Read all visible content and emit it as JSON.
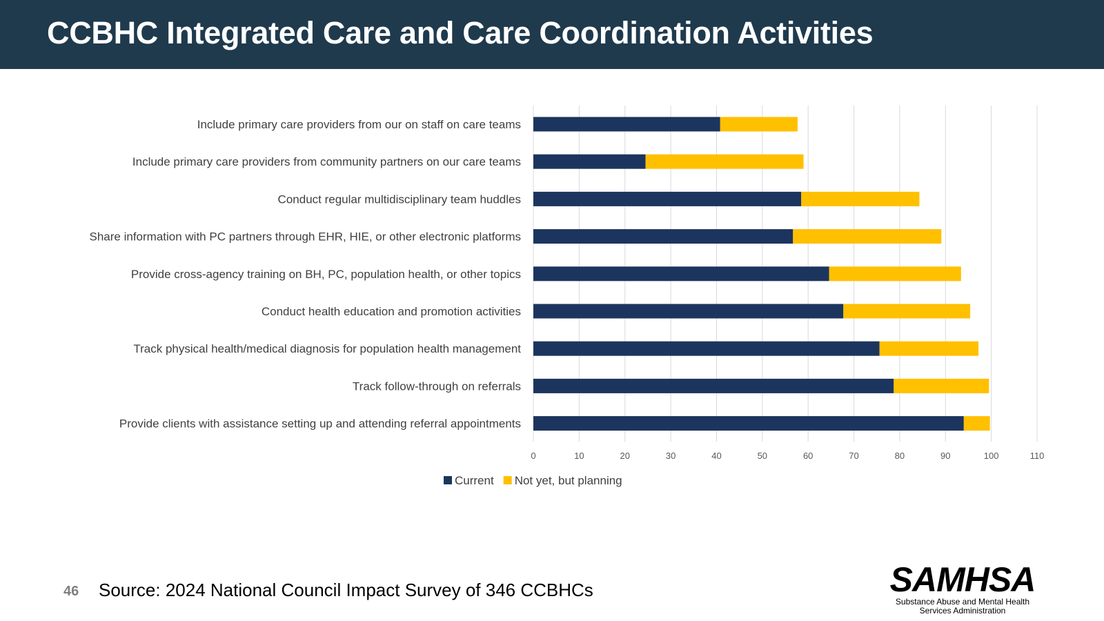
{
  "title": "CCBHC Integrated Care and Care Coordination Activities",
  "page_number": "46",
  "source": "Source:  2024 National Council Impact Survey of 346 CCBHCs",
  "logo": {
    "name": "SAMHSA",
    "subtitle_line1": "Substance Abuse and Mental Health",
    "subtitle_line2": "Services Administration"
  },
  "colors": {
    "header": "#1f3a4d",
    "current": "#1c355e",
    "planning": "#ffc000",
    "grid": "#d9d9d9"
  },
  "chart_data": {
    "type": "bar",
    "orientation": "horizontal",
    "stacked": true,
    "categories": [
      "Include primary care providers from our on staff on care teams",
      "Include primary care providers from community partners on our care teams",
      "Conduct regular multidisciplinary team huddles",
      "Share information with PC partners through EHR, HIE, or other electronic platforms",
      "Provide cross-agency training on BH, PC, population health, or other topics",
      "Conduct health education and promotion activities",
      "Track physical health/medical diagnosis for population health management",
      "Track follow-through on referrals",
      "Provide clients with assistance setting up and attending referral appointments"
    ],
    "series": [
      {
        "name": "Current",
        "color": "#1c355e",
        "values": [
          40.8,
          24.5,
          58.5,
          56.7,
          64.6,
          67.7,
          75.6,
          78.7,
          94.0
        ]
      },
      {
        "name": "Not yet, but planning",
        "color": "#ffc000",
        "values": [
          16.9,
          34.5,
          25.8,
          32.4,
          28.8,
          27.7,
          21.6,
          20.8,
          5.7
        ]
      }
    ],
    "xlim": [
      0,
      110
    ],
    "xticks": [
      0,
      10,
      20,
      30,
      40,
      50,
      60,
      70,
      80,
      90,
      100,
      110
    ],
    "grid": true,
    "legend": "bottom"
  }
}
